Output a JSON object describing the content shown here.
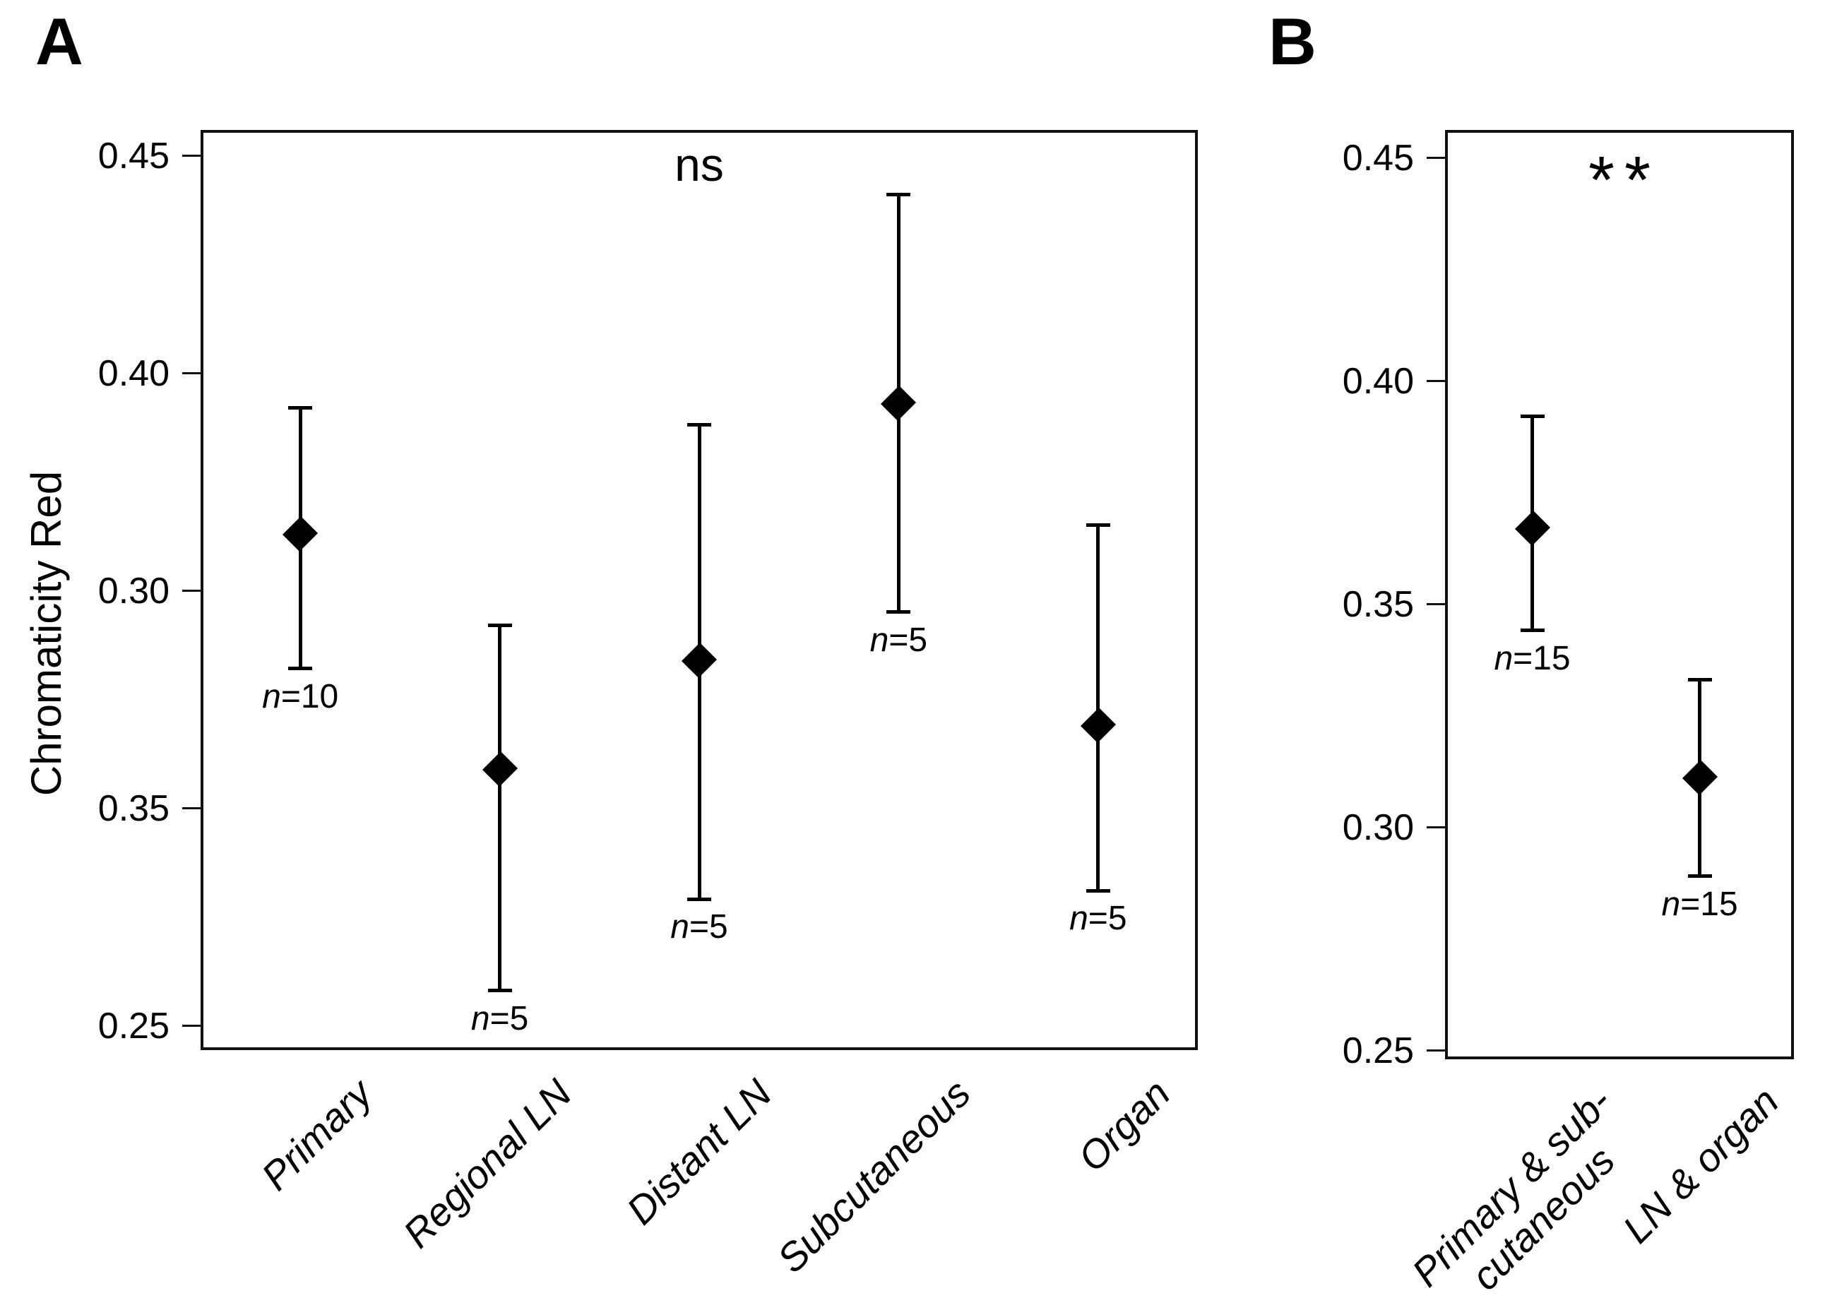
{
  "chart_data": {
    "type": "scatter",
    "description": "Two-panel figure of point estimates (black diamond markers) with vertical error bars",
    "ylabel": "Chromaticity Red",
    "ylim": [
      0.25,
      0.45
    ],
    "grid": false,
    "marker": "diamond",
    "panels": [
      {
        "panel_label": "A",
        "significance": "ns",
        "ytick_labels_top_to_bottom": [
          "0.45",
          "0.40",
          "0.30",
          "0.35",
          "0.25"
        ],
        "ytick_note": "Tick labels reproduced exactly as printed in the source figure: the 0.30 and 0.35 labels appear swapped; tick marks are evenly spaced.",
        "points": [
          {
            "category": "Primary",
            "n": "n=10",
            "value": 0.363,
            "err_high": 0.392,
            "err_low": 0.332
          },
          {
            "category": "Regional LN",
            "n": "n=5",
            "value": 0.309,
            "err_high": 0.342,
            "err_low": 0.258
          },
          {
            "category": "Distant LN",
            "n": "n=5",
            "value": 0.334,
            "err_high": 0.388,
            "err_low": 0.279
          },
          {
            "category": "Subcutaneous",
            "n": "n=5",
            "value": 0.393,
            "err_high": 0.441,
            "err_low": 0.345
          },
          {
            "category": "Organ",
            "n": "n=5",
            "value": 0.319,
            "err_high": 0.365,
            "err_low": 0.281
          }
        ]
      },
      {
        "panel_label": "B",
        "significance": "**",
        "ytick_labels_top_to_bottom": [
          "0.45",
          "0.40",
          "0.35",
          "0.30",
          "0.25"
        ],
        "points": [
          {
            "category": "Primary & sub-\ncutaneous",
            "n": "n=15",
            "value": 0.367,
            "err_high": 0.392,
            "err_low": 0.344
          },
          {
            "category": "LN & organ",
            "n": "n=15",
            "value": 0.311,
            "err_high": 0.333,
            "err_low": 0.289
          }
        ]
      }
    ],
    "colors": {
      "marker": "#000000",
      "line": "#000000",
      "border": "#111111",
      "background": "#ffffff"
    }
  }
}
